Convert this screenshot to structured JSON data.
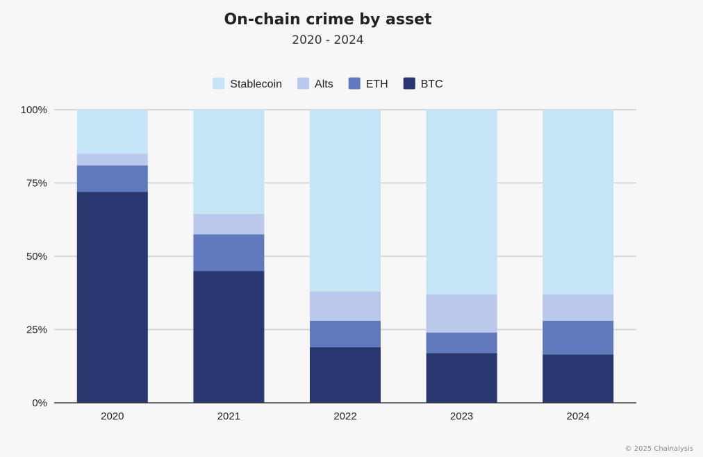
{
  "chart_data": {
    "type": "bar",
    "stacked": true,
    "title": "On-chain crime by asset",
    "subtitle": "2020 - 2024",
    "categories": [
      "2020",
      "2021",
      "2022",
      "2023",
      "2024"
    ],
    "series": [
      {
        "name": "BTC",
        "color": "#283770",
        "values": [
          72,
          45,
          19,
          17,
          16.5
        ]
      },
      {
        "name": "ETH",
        "color": "#6079bd",
        "values": [
          9,
          12.5,
          9,
          7,
          11.5
        ]
      },
      {
        "name": "Alts",
        "color": "#bac8ec",
        "values": [
          4,
          7,
          10,
          13,
          9
        ]
      },
      {
        "name": "Stablecoin",
        "color": "#c5e5f6",
        "values": [
          15,
          35.5,
          62,
          63,
          63
        ]
      }
    ],
    "legend_order": [
      "Stablecoin",
      "Alts",
      "ETH",
      "BTC"
    ],
    "y_ticks": [
      "0%",
      "25%",
      "50%",
      "75%",
      "100%"
    ],
    "ylim": [
      0,
      100
    ],
    "grid": true,
    "legend_position": "top"
  },
  "footer": {
    "copyright": "© 2025 Chainalysis"
  }
}
